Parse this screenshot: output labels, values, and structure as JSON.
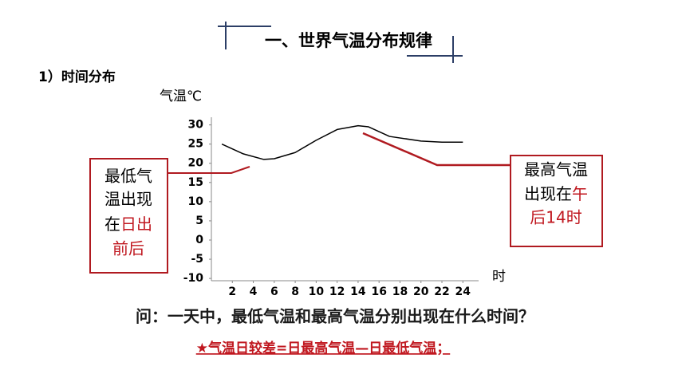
{
  "header": {
    "title": "一、世界气温分布规律",
    "section": "1）时间分布"
  },
  "chart_data": {
    "type": "line",
    "y_label": "气温℃",
    "x_label": "时",
    "x": [
      1,
      3,
      5,
      6,
      8,
      10,
      12,
      14,
      15,
      17,
      20,
      22,
      24
    ],
    "values": [
      25,
      22.5,
      21,
      21.2,
      22.8,
      26,
      28.8,
      29.8,
      29.5,
      27,
      25.8,
      25.5,
      25.5
    ],
    "color": "#000000",
    "xlim": [
      0,
      25.5
    ],
    "xticks": [
      2,
      4,
      6,
      8,
      10,
      12,
      14,
      16,
      18,
      20,
      22,
      24
    ],
    "ylim": [
      -10.6,
      32
    ],
    "yticks": [
      30,
      25,
      20,
      15,
      10,
      5,
      0,
      -5,
      -10
    ]
  },
  "left_note": {
    "lines": [
      [
        "最低气"
      ],
      [
        "温出现"
      ],
      [
        "在",
        "日出"
      ],
      [
        "前后"
      ]
    ]
  },
  "right_note": {
    "lines": [
      [
        "最高气温"
      ],
      [
        "出现在",
        "午"
      ],
      [
        "后14时"
      ]
    ]
  },
  "question": "问：一天中，最低气温和最高气温分别出现在什么时间？",
  "formula": "★气温日较差=日最高气温—日最低气温；"
}
